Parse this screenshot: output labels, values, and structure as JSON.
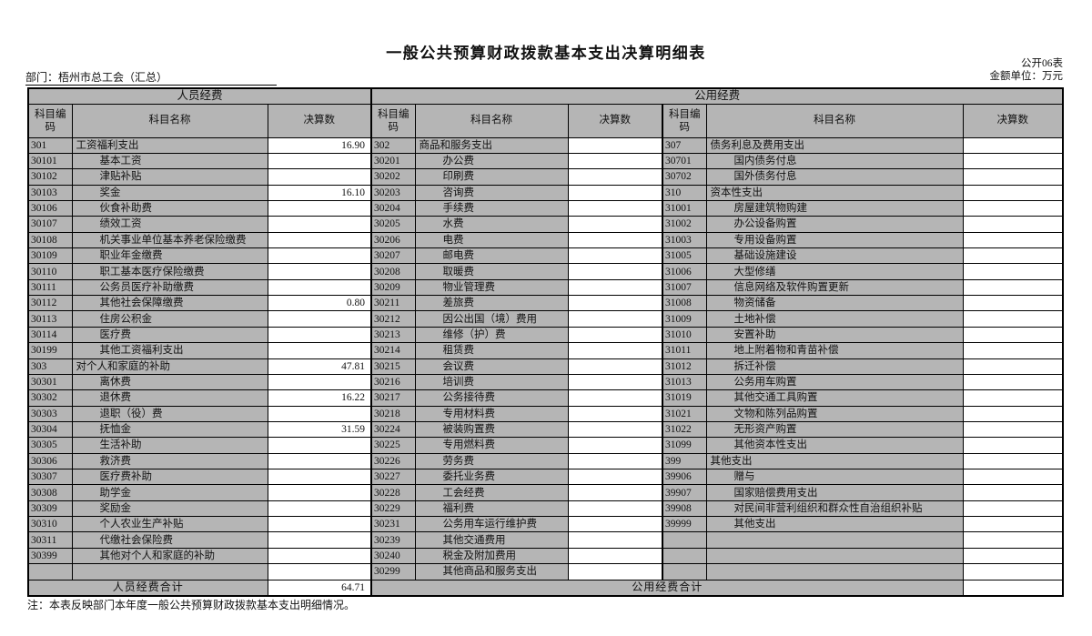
{
  "meta": {
    "title": "一般公共预算财政拨款基本支出决算明细表",
    "table_code": "公开06表",
    "unit_label": "金额单位：万元",
    "department_label": "部门：梧州市总工会（汇总）",
    "note": "注：本表反映部门本年度一般公共预算财政拨款基本支出明细情况。"
  },
  "header": {
    "section_left": "人员经费",
    "section_right": "公用经费",
    "col_code": "科目编码",
    "col_name": "科目名称",
    "col_value": "决算数"
  },
  "totals": {
    "left_label": "人员经费合计",
    "left_value": "64.71",
    "right_label": "公用经费合计",
    "right_value": ""
  },
  "colors": {
    "cell_gray": "#b5b5b5",
    "border": "#000000",
    "background": "#ffffff"
  },
  "table": {
    "row_count": 28,
    "left_rows": [
      {
        "code": "301",
        "name": "工资福利支出",
        "value": "16.90",
        "level": "top"
      },
      {
        "code": "30101",
        "name": "基本工资",
        "value": "",
        "level": "sub"
      },
      {
        "code": "30102",
        "name": "津贴补贴",
        "value": "",
        "level": "sub"
      },
      {
        "code": "30103",
        "name": "奖金",
        "value": "16.10",
        "level": "sub"
      },
      {
        "code": "30106",
        "name": "伙食补助费",
        "value": "",
        "level": "sub"
      },
      {
        "code": "30107",
        "name": "绩效工资",
        "value": "",
        "level": "sub"
      },
      {
        "code": "30108",
        "name": "机关事业单位基本养老保险缴费",
        "value": "",
        "level": "sub"
      },
      {
        "code": "30109",
        "name": "职业年金缴费",
        "value": "",
        "level": "sub"
      },
      {
        "code": "30110",
        "name": "职工基本医疗保险缴费",
        "value": "",
        "level": "sub"
      },
      {
        "code": "30111",
        "name": "公务员医疗补助缴费",
        "value": "",
        "level": "sub"
      },
      {
        "code": "30112",
        "name": "其他社会保障缴费",
        "value": "0.80",
        "level": "sub"
      },
      {
        "code": "30113",
        "name": "住房公积金",
        "value": "",
        "level": "sub"
      },
      {
        "code": "30114",
        "name": "医疗费",
        "value": "",
        "level": "sub"
      },
      {
        "code": "30199",
        "name": "其他工资福利支出",
        "value": "",
        "level": "sub"
      },
      {
        "code": "303",
        "name": "对个人和家庭的补助",
        "value": "47.81",
        "level": "top"
      },
      {
        "code": "30301",
        "name": "离休费",
        "value": "",
        "level": "sub"
      },
      {
        "code": "30302",
        "name": "退休费",
        "value": "16.22",
        "level": "sub"
      },
      {
        "code": "30303",
        "name": "退职（役）费",
        "value": "",
        "level": "sub"
      },
      {
        "code": "30304",
        "name": "抚恤金",
        "value": "31.59",
        "level": "sub"
      },
      {
        "code": "30305",
        "name": "生活补助",
        "value": "",
        "level": "sub"
      },
      {
        "code": "30306",
        "name": "救济费",
        "value": "",
        "level": "sub"
      },
      {
        "code": "30307",
        "name": "医疗费补助",
        "value": "",
        "level": "sub"
      },
      {
        "code": "30308",
        "name": "助学金",
        "value": "",
        "level": "sub"
      },
      {
        "code": "30309",
        "name": "奖励金",
        "value": "",
        "level": "sub"
      },
      {
        "code": "30310",
        "name": "个人农业生产补贴",
        "value": "",
        "level": "sub"
      },
      {
        "code": "30311",
        "name": "代缴社会保险费",
        "value": "",
        "level": "sub"
      },
      {
        "code": "30399",
        "name": "其他对个人和家庭的补助",
        "value": "",
        "level": "sub"
      },
      {
        "code": "",
        "name": "",
        "value": "",
        "level": ""
      }
    ],
    "middle_rows": [
      {
        "code": "302",
        "name": "商品和服务支出",
        "value": "",
        "level": "top"
      },
      {
        "code": "30201",
        "name": "办公费",
        "value": "",
        "level": "sub"
      },
      {
        "code": "30202",
        "name": "印刷费",
        "value": "",
        "level": "sub"
      },
      {
        "code": "30203",
        "name": "咨询费",
        "value": "",
        "level": "sub"
      },
      {
        "code": "30204",
        "name": "手续费",
        "value": "",
        "level": "sub"
      },
      {
        "code": "30205",
        "name": "水费",
        "value": "",
        "level": "sub"
      },
      {
        "code": "30206",
        "name": "电费",
        "value": "",
        "level": "sub"
      },
      {
        "code": "30207",
        "name": "邮电费",
        "value": "",
        "level": "sub"
      },
      {
        "code": "30208",
        "name": "取暖费",
        "value": "",
        "level": "sub"
      },
      {
        "code": "30209",
        "name": "物业管理费",
        "value": "",
        "level": "sub"
      },
      {
        "code": "30211",
        "name": "差旅费",
        "value": "",
        "level": "sub"
      },
      {
        "code": "30212",
        "name": "因公出国（境）费用",
        "value": "",
        "level": "sub"
      },
      {
        "code": "30213",
        "name": "维修（护）费",
        "value": "",
        "level": "sub"
      },
      {
        "code": "30214",
        "name": "租赁费",
        "value": "",
        "level": "sub"
      },
      {
        "code": "30215",
        "name": "会议费",
        "value": "",
        "level": "sub"
      },
      {
        "code": "30216",
        "name": "培训费",
        "value": "",
        "level": "sub"
      },
      {
        "code": "30217",
        "name": "公务接待费",
        "value": "",
        "level": "sub"
      },
      {
        "code": "30218",
        "name": "专用材料费",
        "value": "",
        "level": "sub"
      },
      {
        "code": "30224",
        "name": "被装购置费",
        "value": "",
        "level": "sub"
      },
      {
        "code": "30225",
        "name": "专用燃料费",
        "value": "",
        "level": "sub"
      },
      {
        "code": "30226",
        "name": "劳务费",
        "value": "",
        "level": "sub"
      },
      {
        "code": "30227",
        "name": "委托业务费",
        "value": "",
        "level": "sub"
      },
      {
        "code": "30228",
        "name": "工会经费",
        "value": "",
        "level": "sub"
      },
      {
        "code": "30229",
        "name": "福利费",
        "value": "",
        "level": "sub"
      },
      {
        "code": "30231",
        "name": "公务用车运行维护费",
        "value": "",
        "level": "sub"
      },
      {
        "code": "30239",
        "name": "其他交通费用",
        "value": "",
        "level": "sub"
      },
      {
        "code": "30240",
        "name": "税金及附加费用",
        "value": "",
        "level": "sub"
      },
      {
        "code": "30299",
        "name": "其他商品和服务支出",
        "value": "",
        "level": "sub"
      }
    ],
    "right_rows": [
      {
        "code": "307",
        "name": "债务利息及费用支出",
        "value": "",
        "level": "top"
      },
      {
        "code": "30701",
        "name": "国内债务付息",
        "value": "",
        "level": "sub"
      },
      {
        "code": "30702",
        "name": "国外债务付息",
        "value": "",
        "level": "sub"
      },
      {
        "code": "310",
        "name": "资本性支出",
        "value": "",
        "level": "top"
      },
      {
        "code": "31001",
        "name": "房屋建筑物购建",
        "value": "",
        "level": "sub"
      },
      {
        "code": "31002",
        "name": "办公设备购置",
        "value": "",
        "level": "sub"
      },
      {
        "code": "31003",
        "name": "专用设备购置",
        "value": "",
        "level": "sub"
      },
      {
        "code": "31005",
        "name": "基础设施建设",
        "value": "",
        "level": "sub"
      },
      {
        "code": "31006",
        "name": "大型修缮",
        "value": "",
        "level": "sub"
      },
      {
        "code": "31007",
        "name": "信息网络及软件购置更新",
        "value": "",
        "level": "sub"
      },
      {
        "code": "31008",
        "name": "物资储备",
        "value": "",
        "level": "sub"
      },
      {
        "code": "31009",
        "name": "土地补偿",
        "value": "",
        "level": "sub"
      },
      {
        "code": "31010",
        "name": "安置补助",
        "value": "",
        "level": "sub"
      },
      {
        "code": "31011",
        "name": "地上附着物和青苗补偿",
        "value": "",
        "level": "sub"
      },
      {
        "code": "31012",
        "name": "拆迁补偿",
        "value": "",
        "level": "sub"
      },
      {
        "code": "31013",
        "name": "公务用车购置",
        "value": "",
        "level": "sub"
      },
      {
        "code": "31019",
        "name": "其他交通工具购置",
        "value": "",
        "level": "sub"
      },
      {
        "code": "31021",
        "name": "文物和陈列品购置",
        "value": "",
        "level": "sub"
      },
      {
        "code": "31022",
        "name": "无形资产购置",
        "value": "",
        "level": "sub"
      },
      {
        "code": "31099",
        "name": "其他资本性支出",
        "value": "",
        "level": "sub"
      },
      {
        "code": "399",
        "name": "其他支出",
        "value": "",
        "level": "top"
      },
      {
        "code": "39906",
        "name": "赠与",
        "value": "",
        "level": "sub"
      },
      {
        "code": "39907",
        "name": "国家赔偿费用支出",
        "value": "",
        "level": "sub"
      },
      {
        "code": "39908",
        "name": "对民间非营利组织和群众性自治组织补贴",
        "value": "",
        "level": "sub"
      },
      {
        "code": "39999",
        "name": "其他支出",
        "value": "",
        "level": "sub"
      },
      {
        "code": "",
        "name": "",
        "value": "",
        "level": ""
      },
      {
        "code": "",
        "name": "",
        "value": "",
        "level": ""
      },
      {
        "code": "",
        "name": "",
        "value": "",
        "level": ""
      }
    ]
  }
}
